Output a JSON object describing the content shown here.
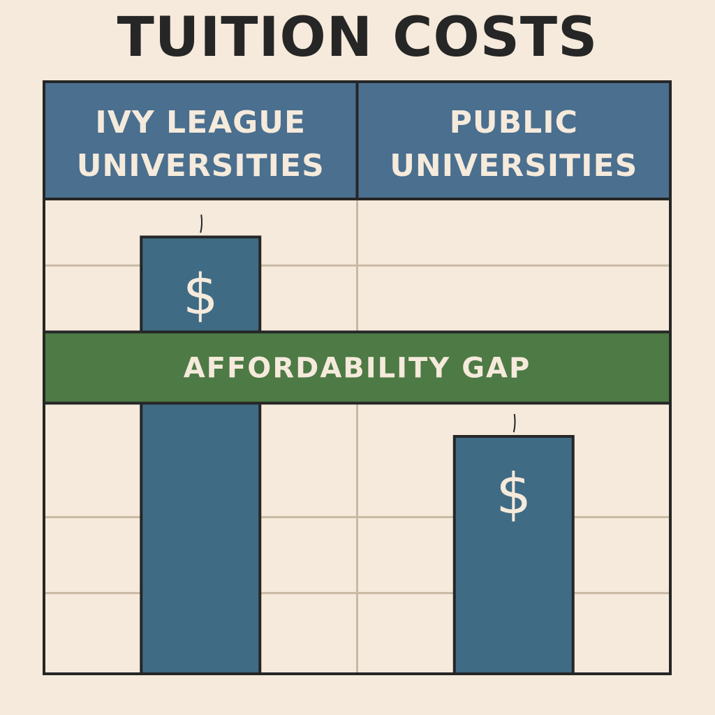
{
  "title": "TUITION COSTS",
  "colors": {
    "background": "#f5eadb",
    "header_fill": "#4a6f8f",
    "bar_fill": "#3f6b84",
    "band_fill": "#4d7a45",
    "outline": "#262626",
    "gridline": "#c9b9a3",
    "text_light": "#f5eadb"
  },
  "chart_data": {
    "type": "bar",
    "title": "TUITION COSTS",
    "categories": [
      [
        "IVY LEAGUE",
        "UNIVERSITIES"
      ],
      [
        "PUBLIC",
        "UNIVERSITIES"
      ]
    ],
    "values": [
      92,
      50
    ],
    "ylim": [
      0,
      100
    ],
    "bar_symbol": "$",
    "annotation": {
      "label": "AFFORDABILITY GAP",
      "from": 57,
      "to": 72
    },
    "grid": true,
    "gridlines": [
      17,
      33,
      86
    ],
    "legend": "none",
    "xlabel": "",
    "ylabel": ""
  }
}
